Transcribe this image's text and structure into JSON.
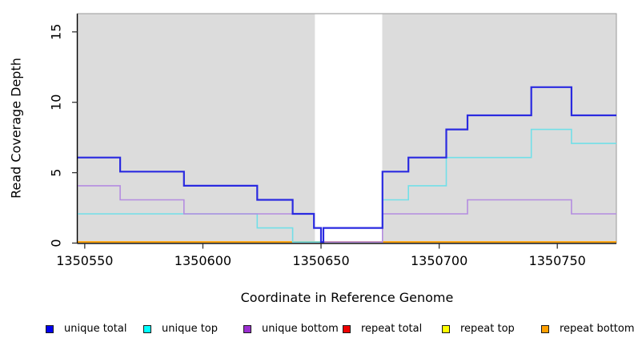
{
  "figure": {
    "xlabel": "Coordinate in Reference Genome",
    "ylabel": "Read Coverage Depth"
  },
  "chart_data": {
    "type": "line",
    "subtype": "step-post",
    "title": "",
    "xlabel": "Coordinate in Reference Genome",
    "ylabel": "Read Coverage Depth",
    "xlim": [
      1350547,
      1350775
    ],
    "ylim": [
      0,
      16.3
    ],
    "x_ticks": [
      1350550,
      1350600,
      1350650,
      1350700,
      1350750
    ],
    "y_ticks": [
      0,
      5,
      10,
      15
    ],
    "grid": false,
    "legend_position": "bottom",
    "panel_background": "#dcdcdc",
    "panel_border_color": "#999999",
    "axis_color": "#000000",
    "mask_region": {
      "x0": 1350647.4,
      "x1": 1350675.9,
      "color": "#ffffff"
    },
    "series": [
      {
        "name": "unique total",
        "line_color": "#2a2ae0",
        "line_width": 2.2,
        "points": [
          [
            1350547,
            6
          ],
          [
            1350565,
            5
          ],
          [
            1350592,
            4
          ],
          [
            1350623,
            3
          ],
          [
            1350638,
            2
          ],
          [
            1350647,
            1
          ],
          [
            1350650,
            0
          ],
          [
            1350651,
            1
          ],
          [
            1350676,
            5
          ],
          [
            1350687,
            6
          ],
          [
            1350703,
            8
          ],
          [
            1350712,
            9
          ],
          [
            1350739,
            11
          ],
          [
            1350756,
            9
          ],
          [
            1350775,
            9
          ]
        ]
      },
      {
        "name": "unique top",
        "line_color": "#72dfe8",
        "line_width": 1.6,
        "points": [
          [
            1350547,
            2
          ],
          [
            1350623,
            1
          ],
          [
            1350638,
            0
          ],
          [
            1350651,
            1
          ],
          [
            1350676,
            3
          ],
          [
            1350687,
            4
          ],
          [
            1350703,
            6
          ],
          [
            1350739,
            8
          ],
          [
            1350756,
            7
          ],
          [
            1350775,
            7
          ]
        ]
      },
      {
        "name": "unique bottom",
        "line_color": "#b48ce0",
        "line_width": 1.6,
        "points": [
          [
            1350547,
            4
          ],
          [
            1350565,
            3
          ],
          [
            1350592,
            2
          ],
          [
            1350647,
            1
          ],
          [
            1350650,
            0
          ],
          [
            1350676,
            2
          ],
          [
            1350712,
            3
          ],
          [
            1350756,
            2
          ],
          [
            1350775,
            2
          ]
        ]
      },
      {
        "name": "repeat total",
        "line_color": "#ee0000",
        "line_width": 1.6,
        "points": [
          [
            1350547,
            0
          ],
          [
            1350775,
            0
          ]
        ]
      },
      {
        "name": "repeat top",
        "line_color": "#ffff00",
        "line_width": 1.6,
        "points": [
          [
            1350547,
            0
          ],
          [
            1350775,
            0
          ]
        ]
      },
      {
        "name": "repeat bottom",
        "line_color": "#ffa000",
        "line_width": 1.7,
        "points": [
          [
            1350547,
            0
          ],
          [
            1350775,
            0
          ]
        ]
      }
    ],
    "baseline_segments": [
      {
        "x0": 1350547,
        "x1": 1350638,
        "color": "#ffa000"
      },
      {
        "x0": 1350638,
        "x1": 1350650,
        "color": "#6cbc84"
      },
      {
        "x0": 1350650,
        "x1": 1350676,
        "color": "#cc5577"
      },
      {
        "x0": 1350676,
        "x1": 1350775,
        "color": "#ffa000"
      }
    ],
    "legend": [
      {
        "label": "unique total",
        "color": "#0000ee"
      },
      {
        "label": "unique top",
        "color": "#00ffff"
      },
      {
        "label": "unique bottom",
        "color": "#9b2fd0"
      },
      {
        "label": "repeat total",
        "color": "#ee0000"
      },
      {
        "label": "repeat top",
        "color": "#ffff00"
      },
      {
        "label": "repeat bottom",
        "color": "#ffa000"
      }
    ]
  }
}
